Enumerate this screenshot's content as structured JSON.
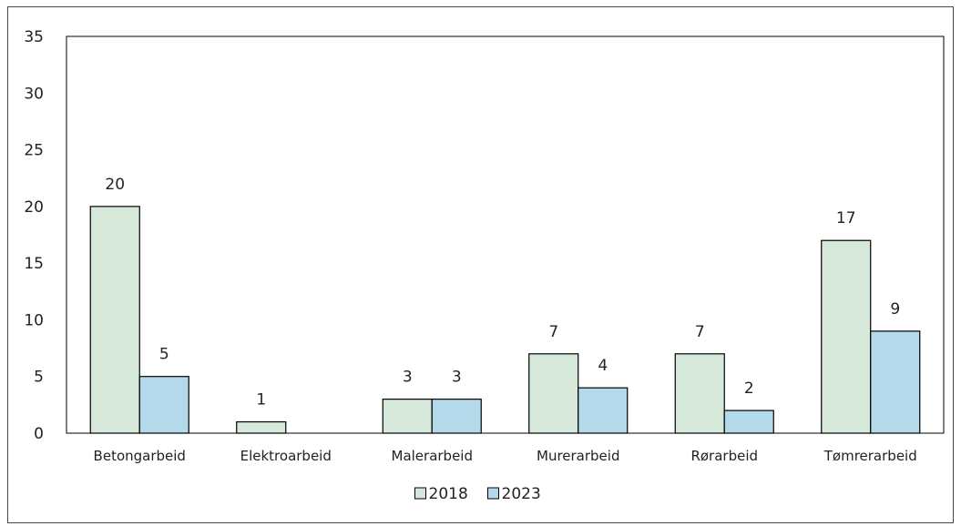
{
  "chart_data": {
    "type": "bar",
    "title": "",
    "xlabel": "",
    "ylabel": "",
    "categories": [
      "Betongarbeid",
      "Elektroarbeid",
      "Malerarbeid",
      "Murerarbeid",
      "Rørarbeid",
      "Tømrerarbeid"
    ],
    "series": [
      {
        "name": "2018",
        "values": [
          20,
          1,
          3,
          7,
          7,
          17
        ],
        "color": "#d6e8d9"
      },
      {
        "name": "2023",
        "values": [
          5,
          null,
          3,
          4,
          2,
          9
        ],
        "color": "#b3d9ea"
      }
    ],
    "ylim": [
      0,
      35
    ],
    "yticks": [
      0,
      5,
      10,
      15,
      20,
      25,
      30,
      35
    ],
    "data_labels": true,
    "grid": false,
    "legend_position": "bottom"
  }
}
